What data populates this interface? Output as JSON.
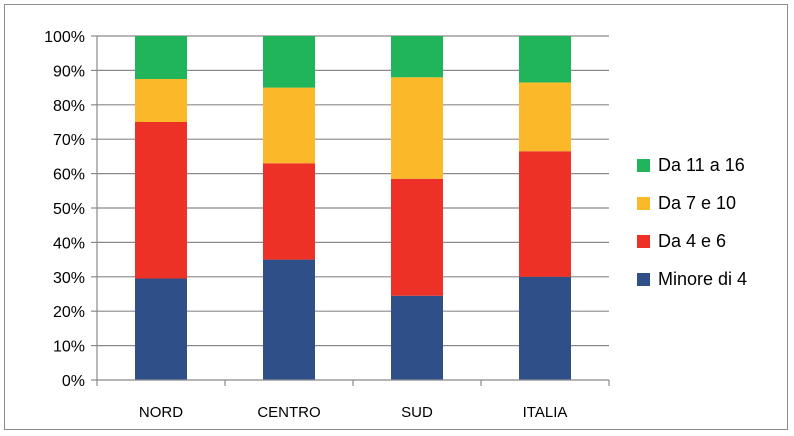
{
  "chart_data": {
    "type": "bar",
    "stacked": true,
    "percent_stacked": true,
    "categories": [
      "NORD",
      "CENTRO",
      "SUD",
      "ITALIA"
    ],
    "series": [
      {
        "name": "Minore di 4",
        "color": "#2e4f88",
        "values": [
          29.5,
          35,
          24.5,
          30
        ]
      },
      {
        "name": "Da 4 e 6",
        "color": "#ee3127",
        "values": [
          45.5,
          28,
          34,
          36.5
        ]
      },
      {
        "name": "Da 7 e 10",
        "color": "#fbb829",
        "values": [
          12.5,
          22,
          29.5,
          20
        ]
      },
      {
        "name": "Da 11 a 16",
        "color": "#20b55a",
        "values": [
          12.5,
          15,
          12,
          13.5
        ]
      }
    ],
    "y_ticks": [
      "0%",
      "10%",
      "20%",
      "30%",
      "40%",
      "50%",
      "60%",
      "70%",
      "80%",
      "90%",
      "100%"
    ],
    "ylim": [
      0,
      100
    ],
    "grid": true,
    "legend_position": "right",
    "legend_order": [
      "Da 11 a 16",
      "Da 7 e 10",
      "Da 4 e 6",
      "Minore di 4"
    ]
  }
}
